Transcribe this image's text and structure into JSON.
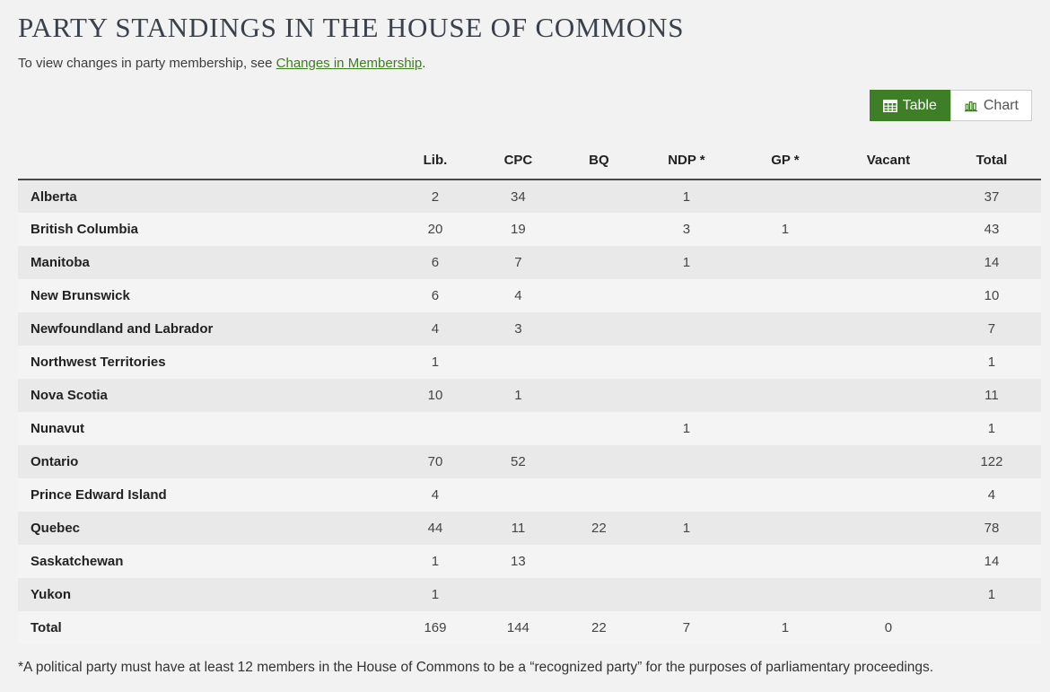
{
  "page": {
    "title": "PARTY STANDINGS IN THE HOUSE OF COMMONS",
    "intro": {
      "prefix": "To view changes in party membership, see ",
      "link_text": "Changes in Membership",
      "suffix": "."
    },
    "footnote": "*A political party must have at least 12 members in the House of Commons to be a “recognized party” for the purposes of parliamentary proceedings."
  },
  "view_toggle": {
    "table_label": "Table",
    "chart_label": "Chart",
    "active_view": "Table",
    "table_icon": "table-grid-icon",
    "chart_icon": "bar-chart-icon"
  },
  "table": {
    "headers": [
      "",
      "Lib.",
      "CPC",
      "BQ",
      "NDP *",
      "GP *",
      "Vacant",
      "Total"
    ],
    "rows": [
      {
        "label": "Alberta",
        "values": [
          "2",
          "34",
          "",
          "1",
          "",
          "",
          "37"
        ]
      },
      {
        "label": "British Columbia",
        "values": [
          "20",
          "19",
          "",
          "3",
          "1",
          "",
          "43"
        ]
      },
      {
        "label": "Manitoba",
        "values": [
          "6",
          "7",
          "",
          "1",
          "",
          "",
          "14"
        ]
      },
      {
        "label": "New Brunswick",
        "values": [
          "6",
          "4",
          "",
          "",
          "",
          "",
          "10"
        ]
      },
      {
        "label": "Newfoundland and Labrador",
        "values": [
          "4",
          "3",
          "",
          "",
          "",
          "",
          "7"
        ]
      },
      {
        "label": "Northwest Territories",
        "values": [
          "1",
          "",
          "",
          "",
          "",
          "",
          "1"
        ]
      },
      {
        "label": "Nova Scotia",
        "values": [
          "10",
          "1",
          "",
          "",
          "",
          "",
          "11"
        ]
      },
      {
        "label": "Nunavut",
        "values": [
          "",
          "",
          "",
          "1",
          "",
          "",
          "1"
        ]
      },
      {
        "label": "Ontario",
        "values": [
          "70",
          "52",
          "",
          "",
          "",
          "",
          "122"
        ]
      },
      {
        "label": "Prince Edward Island",
        "values": [
          "4",
          "",
          "",
          "",
          "",
          "",
          "4"
        ]
      },
      {
        "label": "Quebec",
        "values": [
          "44",
          "11",
          "22",
          "1",
          "",
          "",
          "78"
        ]
      },
      {
        "label": "Saskatchewan",
        "values": [
          "1",
          "13",
          "",
          "",
          "",
          "",
          "14"
        ]
      },
      {
        "label": "Yukon",
        "values": [
          "1",
          "",
          "",
          "",
          "",
          "",
          "1"
        ]
      },
      {
        "label": "Total",
        "values": [
          "169",
          "144",
          "22",
          "7",
          "1",
          "0",
          ""
        ]
      }
    ]
  },
  "colors": {
    "accent_green": "#3e7e26",
    "link_green": "#3e7d20",
    "page_background": "#f2f2f2",
    "row_stripe_dark": "#e9e9e9",
    "row_stripe_light": "#f4f4f4",
    "header_border": "#4a4a4a"
  }
}
